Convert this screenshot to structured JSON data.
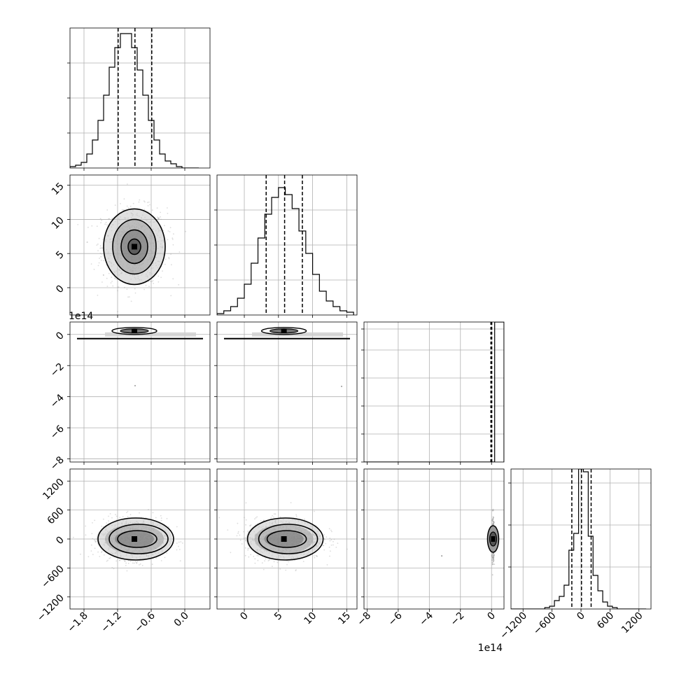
{
  "figure": {
    "grid": true,
    "colors": {
      "line": "#000000",
      "grid": "#b0b0b0",
      "scatter": "#9a9a9a",
      "background": "#ffffff"
    }
  },
  "chart_data": [
    {
      "type": "histogram",
      "panel": "diag-0",
      "bin_edges": [
        -2.05,
        -1.95,
        -1.85,
        -1.75,
        -1.65,
        -1.55,
        -1.45,
        -1.35,
        -1.25,
        -1.15,
        -1.05,
        -0.95,
        -0.85,
        -0.75,
        -0.65,
        -0.55,
        -0.45,
        -0.35,
        -0.25,
        -0.15,
        -0.05,
        0.05,
        0.15,
        0.25
      ],
      "counts": [
        1,
        2,
        4,
        10,
        20,
        34,
        52,
        72,
        86,
        96,
        96,
        86,
        70,
        52,
        34,
        20,
        10,
        5,
        3,
        1,
        0,
        0,
        0
      ],
      "quantiles": [
        -1.19,
        -0.89,
        -0.59
      ],
      "xlim": [
        -2.05,
        0.45
      ],
      "ylim": [
        0,
        100
      ],
      "yticks": [
        25,
        50,
        75
      ],
      "xticks": [
        -1.8,
        -1.2,
        -0.6,
        0.0
      ],
      "xtick_labels": [
        "−1.8",
        "−1.2",
        "−0.6",
        "0.0"
      ],
      "ytick_labels": []
    },
    {
      "type": "scatter-contour",
      "panel": "row1-col0",
      "x_center": -0.9,
      "y_center": 6.0,
      "x_std": 0.29,
      "y_std": 2.8,
      "xlim": [
        -2.05,
        0.45
      ],
      "ylim": [
        -4,
        16.5
      ],
      "xticks": [
        -1.8,
        -1.2,
        -0.6,
        0.0
      ],
      "yticks": [
        0,
        5,
        10,
        15
      ],
      "ytick_labels": [
        "0",
        "5",
        "10",
        "15"
      ]
    },
    {
      "type": "histogram",
      "panel": "diag-1",
      "bin_edges": [
        -4,
        -3,
        -2,
        -1,
        0,
        1,
        2,
        3,
        4,
        5,
        6,
        7,
        8,
        9,
        10,
        11,
        12,
        13,
        14,
        15,
        16
      ],
      "counts": [
        1,
        3,
        6,
        12,
        22,
        37,
        55,
        72,
        84,
        91,
        86,
        76,
        60,
        44,
        29,
        17,
        10,
        6,
        3,
        2
      ],
      "quantiles": [
        3.2,
        5.9,
        8.5
      ],
      "xlim": [
        -4,
        16.5
      ],
      "ylim": [
        0,
        100
      ],
      "yticks": [
        25,
        50,
        75
      ],
      "xticks": [
        0,
        5,
        10,
        15
      ],
      "xtick_labels": [
        "0",
        "5",
        "10",
        "15"
      ],
      "ytick_labels": []
    },
    {
      "type": "scatter-contour",
      "panel": "row2-col0",
      "offset_label": "1e14",
      "x_center": -0.9,
      "y_center": 0.1,
      "xlim": [
        -2.05,
        0.45
      ],
      "ylim": [
        -8.2,
        0.8
      ],
      "yticks": [
        0,
        -2,
        -4,
        -6,
        -8
      ],
      "ytick_labels": [
        "0",
        "−2",
        "−4",
        "−6",
        "−8"
      ]
    },
    {
      "type": "scatter-contour",
      "panel": "row2-col1",
      "x_center": 5.8,
      "y_center": 0.1,
      "xlim": [
        -4,
        16.5
      ],
      "ylim": [
        -8.2,
        0.8
      ]
    },
    {
      "type": "histogram",
      "panel": "diag-2",
      "bin_edges": [
        -8.2,
        -0.1,
        0.2,
        0.8
      ],
      "counts": [
        0,
        1,
        100
      ],
      "quantiles": [
        -0.05,
        0.0,
        0.02
      ],
      "xlim": [
        -8.2,
        0.8
      ],
      "ylim": [
        0,
        100
      ],
      "yticks": [
        0,
        20,
        40,
        60,
        80,
        95
      ],
      "xticks": [
        -8,
        -6,
        -4,
        -2,
        0
      ],
      "xtick_labels": [
        "−8",
        "−6",
        "−4",
        "−2",
        "0"
      ],
      "offset_label": "1e14"
    },
    {
      "type": "scatter-contour",
      "panel": "row3-col0",
      "x_center": -0.9,
      "y_center": 0,
      "x_std": 0.29,
      "y_std": 210,
      "xlim": [
        -2.05,
        0.45
      ],
      "ylim": [
        -1450,
        1450
      ],
      "xticks": [
        -1.8,
        -1.2,
        -0.6,
        0.0
      ],
      "xtick_labels": [
        "−1.8",
        "−1.2",
        "−0.6",
        "0.0"
      ],
      "yticks": [
        1200,
        600,
        0,
        -600,
        -1200
      ],
      "ytick_labels": [
        "1200",
        "600",
        "0",
        "−600",
        "−1200"
      ]
    },
    {
      "type": "scatter-contour",
      "panel": "row3-col1",
      "x_center": 5.8,
      "y_center": 0,
      "x_std": 2.8,
      "y_std": 210,
      "xlim": [
        -4,
        16.5
      ],
      "ylim": [
        -1450,
        1450
      ],
      "xticks": [
        0,
        5,
        10,
        15
      ],
      "xtick_labels": [
        "0",
        "5",
        "10",
        "15"
      ]
    },
    {
      "type": "scatter-contour",
      "panel": "row3-col2",
      "x_center": 0.1,
      "y_center": 0,
      "y_std": 210,
      "xlim": [
        -8.2,
        0.8
      ],
      "ylim": [
        -1450,
        1450
      ],
      "xticks": [
        -8,
        -6,
        -4,
        -2,
        0
      ],
      "xtick_labels": [
        "−8",
        "−6",
        "−4",
        "−2",
        "0"
      ],
      "offset_label": "1e14"
    },
    {
      "type": "histogram",
      "panel": "diag-3",
      "bin_edges": [
        -1450,
        -1350,
        -1250,
        -1150,
        -1050,
        -950,
        -850,
        -750,
        -650,
        -550,
        -450,
        -350,
        -250,
        -150,
        -50,
        50,
        150,
        250,
        350,
        450,
        550,
        650,
        750,
        850,
        950,
        1050,
        1150,
        1250,
        1350
      ],
      "counts": [
        0,
        0,
        0,
        0,
        0,
        0,
        0,
        1,
        2,
        6,
        9,
        17,
        42,
        54,
        100,
        98,
        52,
        24,
        13,
        5,
        2,
        1,
        0,
        0,
        0,
        0,
        0,
        0
      ],
      "quantiles": [
        -190,
        10,
        210
      ],
      "xlim": [
        -1450,
        1450
      ],
      "ylim": [
        0,
        100
      ],
      "yticks": [
        30,
        60,
        90
      ],
      "xticks": [
        -1200,
        -600,
        0,
        600,
        1200
      ],
      "xtick_labels": [
        "−1200",
        "−600",
        "0",
        "600",
        "1200"
      ]
    }
  ]
}
